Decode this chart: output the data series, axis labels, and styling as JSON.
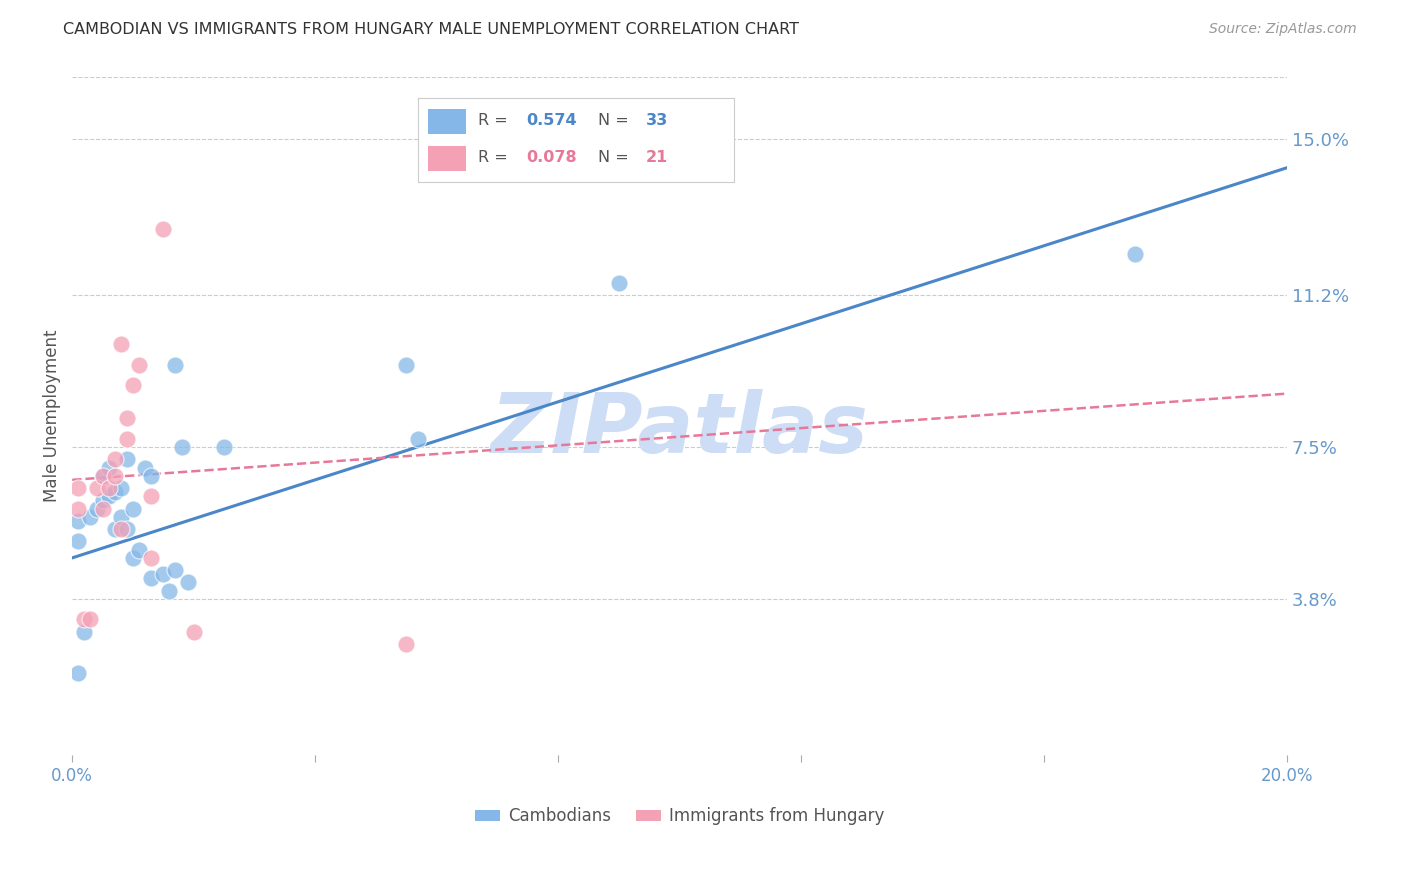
{
  "title": "CAMBODIAN VS IMMIGRANTS FROM HUNGARY MALE UNEMPLOYMENT CORRELATION CHART",
  "source": "Source: ZipAtlas.com",
  "ylabel": "Male Unemployment",
  "xlim": [
    0.0,
    0.2
  ],
  "ylim": [
    0.0,
    0.165
  ],
  "ytick_vals": [
    0.038,
    0.075,
    0.112,
    0.15
  ],
  "ytick_labels": [
    "3.8%",
    "7.5%",
    "11.2%",
    "15.0%"
  ],
  "cambodian_R": 0.574,
  "cambodian_N": 33,
  "hungary_R": 0.078,
  "hungary_N": 21,
  "cambodian_color": "#85b8e8",
  "hungary_color": "#f4a0b5",
  "cambodian_line_color": "#4a86c8",
  "hungary_line_color": "#e87898",
  "background_color": "#ffffff",
  "grid_color": "#cccccc",
  "watermark": "ZIPatlas",
  "watermark_color": "#ccddf5",
  "legend_label1": "Cambodians",
  "legend_label2": "Immigrants from Hungary",
  "title_color": "#333333",
  "axis_label_color": "#555555",
  "tick_label_color": "#6699cc",
  "cambodian_x": [
    0.001,
    0.001,
    0.002,
    0.003,
    0.004,
    0.005,
    0.005,
    0.006,
    0.006,
    0.007,
    0.007,
    0.008,
    0.008,
    0.009,
    0.009,
    0.01,
    0.01,
    0.011,
    0.012,
    0.013,
    0.013,
    0.015,
    0.016,
    0.017,
    0.017,
    0.018,
    0.019,
    0.025,
    0.055,
    0.057,
    0.09,
    0.175,
    0.001
  ],
  "cambodian_y": [
    0.057,
    0.052,
    0.03,
    0.058,
    0.06,
    0.062,
    0.068,
    0.063,
    0.07,
    0.064,
    0.055,
    0.058,
    0.065,
    0.072,
    0.055,
    0.048,
    0.06,
    0.05,
    0.07,
    0.043,
    0.068,
    0.044,
    0.04,
    0.045,
    0.095,
    0.075,
    0.042,
    0.075,
    0.095,
    0.077,
    0.115,
    0.122,
    0.02
  ],
  "hungary_x": [
    0.001,
    0.001,
    0.002,
    0.003,
    0.004,
    0.005,
    0.005,
    0.006,
    0.007,
    0.007,
    0.008,
    0.008,
    0.009,
    0.009,
    0.01,
    0.011,
    0.013,
    0.013,
    0.015,
    0.02,
    0.055
  ],
  "hungary_y": [
    0.06,
    0.065,
    0.033,
    0.033,
    0.065,
    0.06,
    0.068,
    0.065,
    0.068,
    0.072,
    0.055,
    0.1,
    0.077,
    0.082,
    0.09,
    0.095,
    0.063,
    0.048,
    0.128,
    0.03,
    0.027
  ],
  "cam_line_x0": 0.0,
  "cam_line_y0": 0.048,
  "cam_line_x1": 0.2,
  "cam_line_y1": 0.143,
  "hun_line_x0": 0.0,
  "hun_line_y0": 0.067,
  "hun_line_x1": 0.2,
  "hun_line_y1": 0.088
}
